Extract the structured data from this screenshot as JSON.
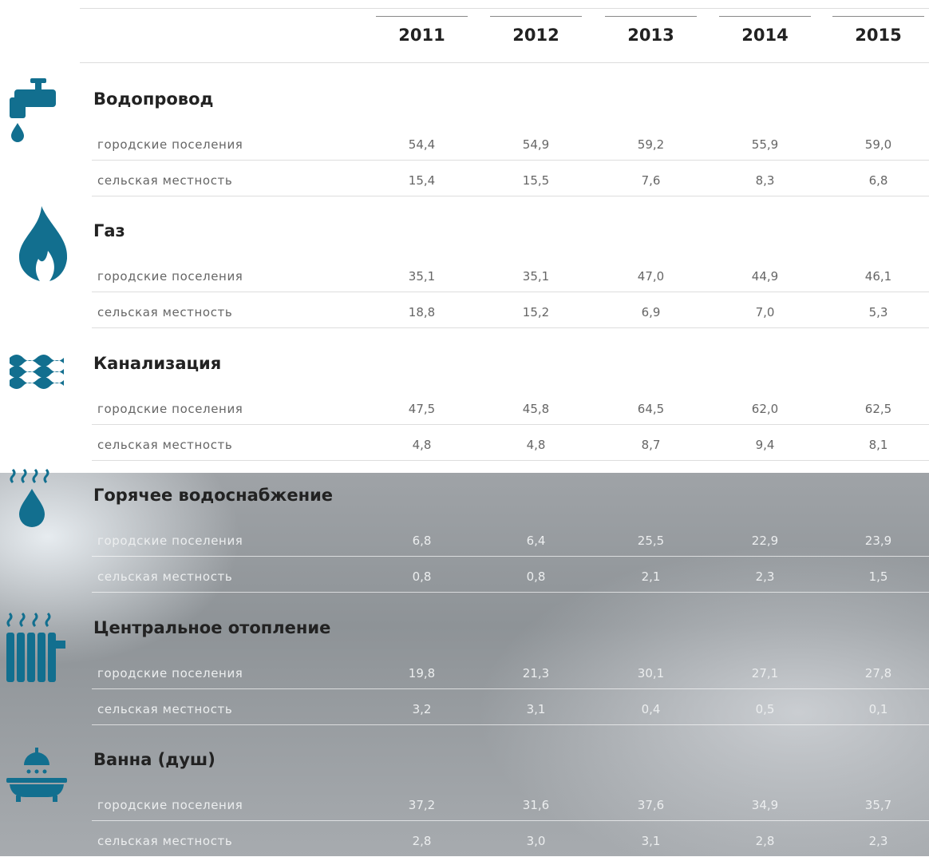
{
  "header": {
    "years": [
      "2011",
      "2012",
      "2013",
      "2014",
      "2015"
    ]
  },
  "sections": [
    {
      "title": "Водопровод",
      "rows": [
        {
          "label": "городские поселения",
          "values": [
            "54,4",
            "54,9",
            "59,2",
            "55,9",
            "59,0"
          ]
        },
        {
          "label": "сельская местность",
          "values": [
            "15,4",
            "15,5",
            "7,6",
            "8,3",
            "6,8"
          ]
        }
      ]
    },
    {
      "title": "Газ",
      "rows": [
        {
          "label": "городские поселения",
          "values": [
            "35,1",
            "35,1",
            "47,0",
            "44,9",
            "46,1"
          ]
        },
        {
          "label": "сельская местность",
          "values": [
            "18,8",
            "15,2",
            "6,9",
            "7,0",
            "5,3"
          ]
        }
      ]
    },
    {
      "title": "Канализация",
      "rows": [
        {
          "label": "городские поселения",
          "values": [
            "47,5",
            "45,8",
            "64,5",
            "62,0",
            "62,5"
          ]
        },
        {
          "label": "сельская местность",
          "values": [
            "4,8",
            "4,8",
            "8,7",
            "9,4",
            "8,1"
          ]
        }
      ]
    },
    {
      "title": "Горячее водоснабжение",
      "rows": [
        {
          "label": "городские поселения",
          "values": [
            "6,8",
            "6,4",
            "25,5",
            "22,9",
            "23,9"
          ]
        },
        {
          "label": "сельская местность",
          "values": [
            "0,8",
            "0,8",
            "2,1",
            "2,3",
            "1,5"
          ]
        }
      ]
    },
    {
      "title": "Центральное отопление",
      "rows": [
        {
          "label": "городские поселения",
          "values": [
            "19,8",
            "21,3",
            "30,1",
            "27,1",
            "27,8"
          ]
        },
        {
          "label": "сельская местность",
          "values": [
            "3,2",
            "3,1",
            "0,4",
            "0,5",
            "0,1"
          ]
        }
      ]
    },
    {
      "title": "Ванна (душ)",
      "rows": [
        {
          "label": "городские поселения",
          "values": [
            "37,2",
            "31,6",
            "37,6",
            "34,9",
            "35,7"
          ]
        },
        {
          "label": "сельская местность",
          "values": [
            "2,8",
            "3,0",
            "3,1",
            "2,8",
            "2,3"
          ]
        }
      ]
    }
  ]
}
